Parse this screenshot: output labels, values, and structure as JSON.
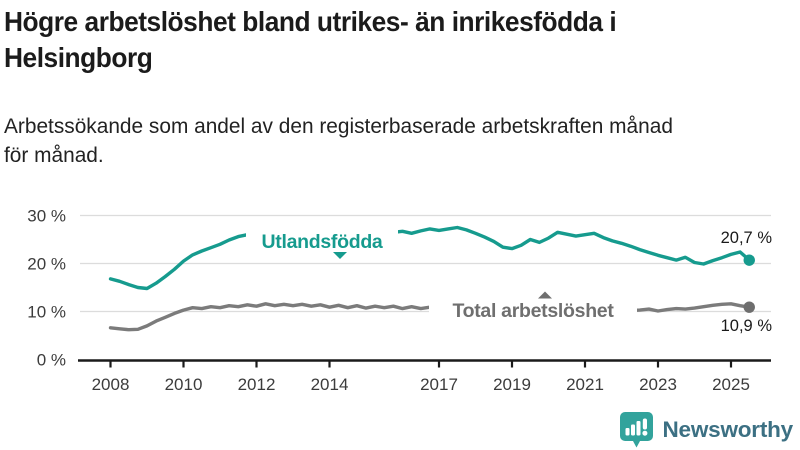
{
  "chart_data": {
    "type": "line",
    "title": "Högre arbetslöshet bland utrikes- än inrikesfödda i\nHelsingborg",
    "subtitle": "Arbetssökande som andel av den registerbaserade arbetskraften månad\nför månad.",
    "x_start": 2008.0,
    "x_step": 0.25,
    "x_end": 2025.5,
    "xlim": [
      2007.6,
      2026.1
    ],
    "ylim": [
      0,
      30
    ],
    "grid": "horizontal",
    "legend": "inline-labels",
    "xticks": {
      "years": [
        2008,
        2010,
        2012,
        2014,
        2017,
        2019,
        2021,
        2023,
        2025
      ],
      "labels": [
        "2008",
        "2010",
        "2012",
        "2014",
        "2017",
        "2019",
        "2021",
        "2023",
        "2025"
      ]
    },
    "yticks": {
      "values": [
        0,
        10,
        20,
        30
      ],
      "labels": [
        "0 %",
        "10 %",
        "20 %",
        "30 %"
      ]
    },
    "series": [
      {
        "name": "Utlandsfödda",
        "label": "Utlandsfödda",
        "end_label": "20,7 %",
        "last_value": 20.7,
        "color": "#169b8e",
        "values": [
          16.8,
          16.3,
          15.6,
          15.0,
          14.8,
          15.9,
          17.3,
          18.8,
          20.5,
          21.8,
          22.6,
          23.3,
          24.0,
          24.9,
          25.6,
          26.0,
          26.2,
          26.0,
          26.3,
          26.1,
          26.4,
          26.2,
          26.5,
          26.3,
          26.6,
          26.4,
          26.7,
          26.5,
          26.3,
          26.6,
          26.8,
          26.5,
          26.7,
          26.3,
          26.8,
          27.2,
          26.9,
          27.2,
          27.5,
          27.0,
          26.3,
          25.5,
          24.6,
          23.4,
          23.1,
          23.8,
          25.0,
          24.4,
          25.3,
          26.5,
          26.1,
          25.7,
          26.0,
          26.3,
          25.4,
          24.7,
          24.2,
          23.6,
          22.9,
          22.3,
          21.7,
          21.2,
          20.7,
          21.3,
          20.2,
          19.9,
          20.6,
          21.2,
          21.9,
          22.4,
          20.7
        ]
      },
      {
        "name": "Total arbetslöshet",
        "label": "Total arbetslöshet",
        "end_label": "10,9 %",
        "last_value": 10.9,
        "color": "#7b7b7b",
        "values": [
          6.6,
          6.4,
          6.2,
          6.3,
          7.0,
          8.0,
          8.8,
          9.6,
          10.3,
          10.8,
          10.6,
          11.0,
          10.8,
          11.2,
          11.0,
          11.4,
          11.1,
          11.6,
          11.2,
          11.5,
          11.2,
          11.5,
          11.1,
          11.4,
          10.9,
          11.3,
          10.8,
          11.2,
          10.7,
          11.1,
          10.8,
          11.1,
          10.6,
          11.0,
          10.6,
          10.9,
          10.5,
          10.9,
          10.7,
          10.6,
          10.3,
          10.6,
          10.2,
          10.5,
          10.0,
          10.4,
          10.1,
          10.5,
          10.7,
          11.5,
          11.2,
          11.0,
          10.9,
          10.6,
          10.4,
          10.3,
          10.4,
          10.2,
          10.3,
          10.5,
          10.1,
          10.4,
          10.6,
          10.5,
          10.7,
          11.0,
          11.3,
          11.5,
          11.6,
          11.2,
          10.9
        ]
      }
    ],
    "colors": {
      "grid": "#dcdcdc",
      "axis": "#1a1a1a",
      "tick_label": "#3c3c3c",
      "end_label": "#1a1a1a"
    }
  },
  "logo": {
    "text": "Newsworthy",
    "icon": "newsworthy-bubble-chart-icon",
    "icon_color": "#32a39c",
    "text_color": "#3c7083"
  }
}
